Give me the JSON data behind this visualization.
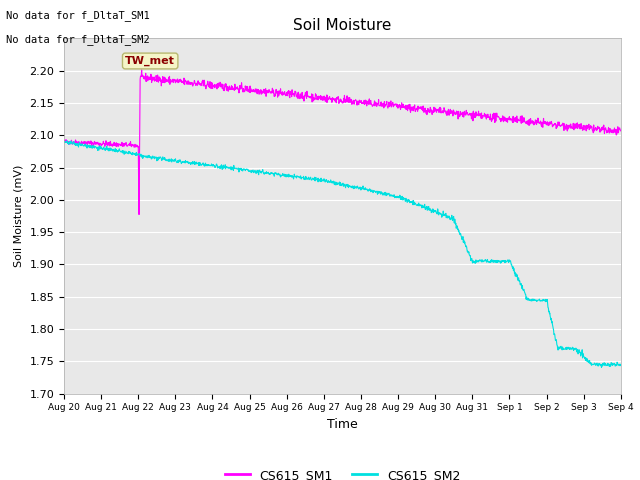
{
  "title": "Soil Moisture",
  "xlabel": "Time",
  "ylabel": "Soil Moisture (mV)",
  "ylim": [
    1.7,
    2.25
  ],
  "yticks": [
    1.7,
    1.75,
    1.8,
    1.85,
    1.9,
    1.95,
    2.0,
    2.05,
    2.1,
    2.15,
    2.2
  ],
  "bg_color": "#e8e8e8",
  "fig_color": "#ffffff",
  "text_no_data": [
    "No data for f_DltaT_SM1",
    "No data for f_DltaT_SM2"
  ],
  "annotation_label": "TW_met",
  "sm1_color": "#ff00ff",
  "sm2_color": "#00e0e0",
  "legend_labels": [
    "CS615_SM1",
    "CS615_SM2"
  ],
  "x_tick_labels": [
    "Aug 20",
    "Aug 21",
    "Aug 22",
    "Aug 23",
    "Aug 24",
    "Aug 25",
    "Aug 26",
    "Aug 27",
    "Aug 28",
    "Aug 29",
    "Aug 30",
    "Aug 31",
    "Sep 1",
    "Sep 2",
    "Sep 3",
    "Sep 4"
  ]
}
